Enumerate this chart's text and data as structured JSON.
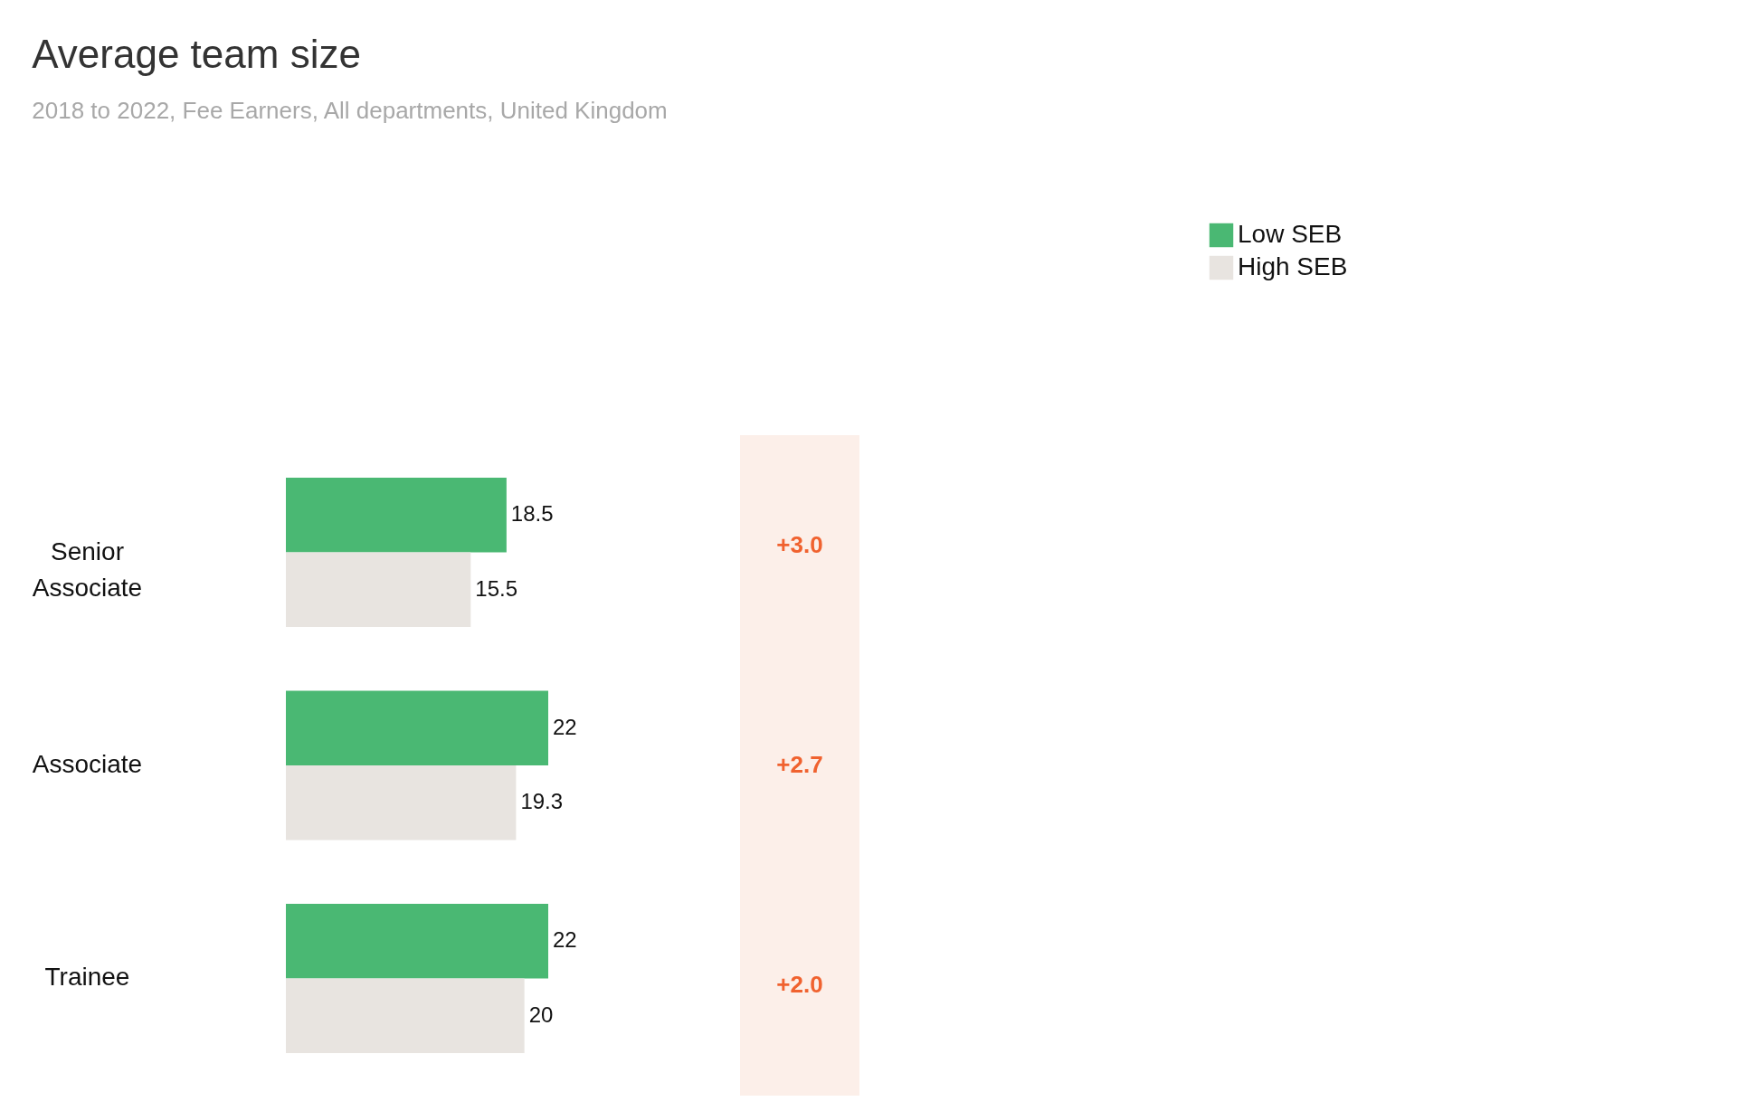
{
  "chart_data": {
    "type": "bar",
    "orientation": "horizontal",
    "title": "Average team size",
    "subtitle": "2018 to 2022, Fee Earners, All departments, United Kingdom",
    "categories": [
      "Senior Associate",
      "Associate",
      "Trainee"
    ],
    "series": [
      {
        "name": "Low SEB",
        "color": "#4ab873",
        "values": [
          18.5,
          22,
          22
        ]
      },
      {
        "name": "High SEB",
        "color": "#e8e4e0",
        "values": [
          15.5,
          19.3,
          20
        ]
      }
    ],
    "data_labels": true,
    "legend": "top right",
    "annotations": [
      "+3.0",
      "+2.7",
      "+2.0"
    ]
  }
}
